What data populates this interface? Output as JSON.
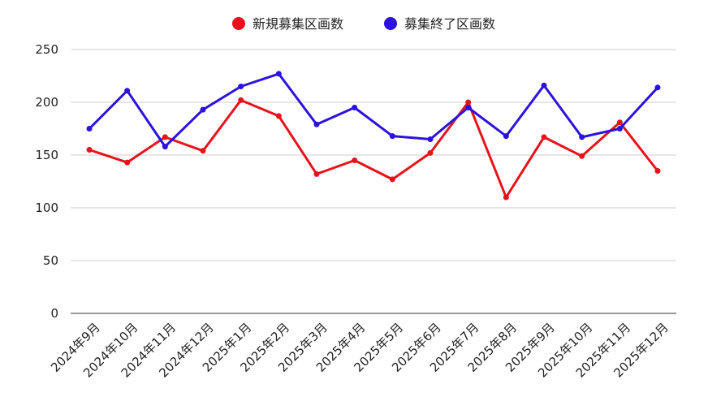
{
  "chart_data": {
    "type": "line",
    "title": "",
    "xlabel": "",
    "ylabel": "",
    "ylim": [
      0,
      250
    ],
    "yticks": [
      0,
      50,
      100,
      150,
      200,
      250
    ],
    "grid": true,
    "legend_position": "top-center",
    "categories": [
      "2024年9月",
      "2024年10月",
      "2024年11月",
      "2024年12月",
      "2025年1月",
      "2025年2月",
      "2025年3月",
      "2025年4月",
      "2025年5月",
      "2025年6月",
      "2025年7月",
      "2025年8月",
      "2025年9月",
      "2025年10月",
      "2025年11月",
      "2025年12月"
    ],
    "series": [
      {
        "name": "新規募集区画数",
        "color": "#e8121a",
        "values": [
          155,
          143,
          167,
          154,
          202,
          187,
          132,
          145,
          127,
          152,
          200,
          110,
          167,
          149,
          181,
          135
        ]
      },
      {
        "name": "募集終了区画数",
        "color": "#2b12e0",
        "values": [
          175,
          211,
          158,
          193,
          215,
          227,
          179,
          195,
          168,
          165,
          195,
          168,
          216,
          167,
          175,
          214
        ]
      }
    ]
  }
}
